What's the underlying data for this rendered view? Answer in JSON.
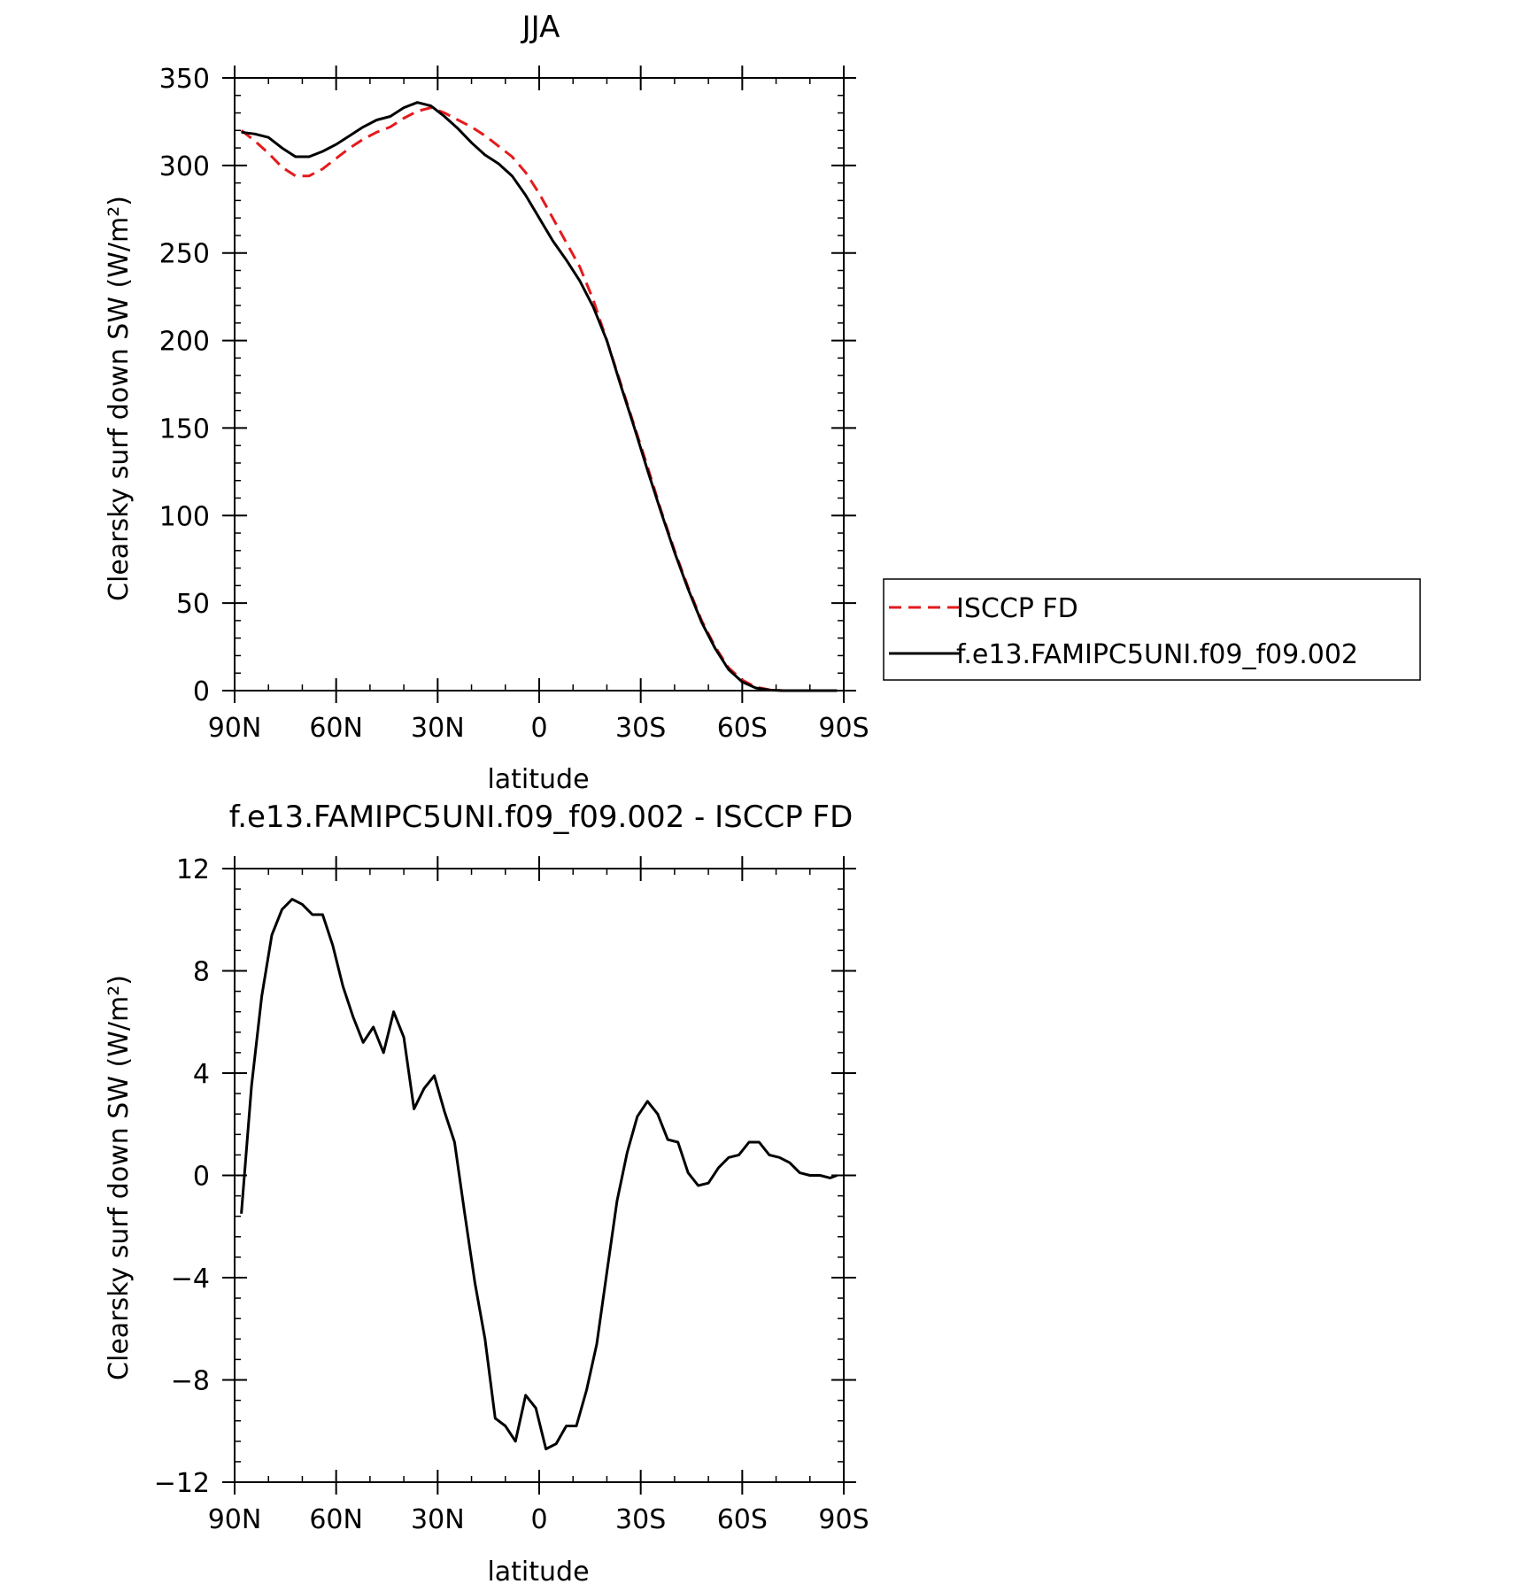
{
  "chart_data": [
    {
      "type": "line",
      "title": "JJA",
      "xlabel": "latitude",
      "ylabel": "Clearsky surf down SW (W/m²)",
      "xlim": [
        90,
        -90
      ],
      "ylim": [
        0,
        350
      ],
      "x_ticks": [
        90,
        60,
        30,
        0,
        -30,
        -60,
        -90
      ],
      "x_tick_labels": [
        "90N",
        "60N",
        "30N",
        "0",
        "30S",
        "60S",
        "90S"
      ],
      "y_ticks": [
        0,
        50,
        100,
        150,
        200,
        250,
        300,
        350
      ],
      "y_tick_labels": [
        "0",
        "50",
        "100",
        "150",
        "200",
        "250",
        "300",
        "350"
      ],
      "legend_position": "right",
      "series": [
        {
          "name": "ISCCP FD",
          "color": "#e41a1c",
          "dash": "dashed",
          "x": [
            88,
            84,
            80,
            76,
            72,
            68,
            64,
            60,
            56,
            52,
            48,
            44,
            40,
            36,
            32,
            28,
            24,
            20,
            16,
            12,
            8,
            4,
            0,
            -4,
            -8,
            -12,
            -16,
            -20,
            -24,
            -28,
            -32,
            -36,
            -40,
            -44,
            -48,
            -52,
            -56,
            -60,
            -64,
            -68,
            -72,
            -76,
            -80,
            -84,
            -88
          ],
          "y": [
            320,
            314,
            307,
            299,
            294,
            294,
            298,
            304,
            310,
            315,
            319,
            322,
            327,
            331,
            333,
            330,
            326,
            322,
            317,
            311,
            305,
            296,
            284,
            270,
            256,
            242,
            223,
            200,
            176,
            152,
            128,
            103,
            80,
            59,
            40,
            25,
            13,
            6,
            2,
            0.5,
            0,
            0,
            0,
            0,
            0
          ]
        },
        {
          "name": "f.e13.FAMIPC5UNI.f09_f09.002",
          "color": "#000000",
          "dash": "solid",
          "x": [
            88,
            84,
            80,
            76,
            72,
            68,
            64,
            60,
            56,
            52,
            48,
            44,
            40,
            36,
            32,
            28,
            24,
            20,
            16,
            12,
            8,
            4,
            0,
            -4,
            -8,
            -12,
            -16,
            -20,
            -24,
            -28,
            -32,
            -36,
            -40,
            -44,
            -48,
            -52,
            -56,
            -60,
            -64,
            -68,
            -72,
            -76,
            -80,
            -84,
            -88
          ],
          "y": [
            319,
            318,
            316,
            310,
            305,
            305,
            308,
            312,
            317,
            322,
            326,
            328,
            333,
            336,
            334,
            328,
            321,
            313,
            306,
            301,
            294,
            283,
            270,
            257,
            246,
            234,
            219,
            200,
            175,
            151,
            126,
            102,
            79,
            58,
            39,
            24,
            12,
            5,
            1.5,
            0.3,
            0,
            0,
            0,
            0,
            0
          ]
        }
      ]
    },
    {
      "type": "line",
      "title": "f.e13.FAMIPC5UNI.f09_f09.002 - ISCCP FD",
      "xlabel": "latitude",
      "ylabel": "Clearsky surf down SW (W/m²)",
      "xlim": [
        90,
        -90
      ],
      "ylim": [
        -12,
        12
      ],
      "x_ticks": [
        90,
        60,
        30,
        0,
        -30,
        -60,
        -90
      ],
      "x_tick_labels": [
        "90N",
        "60N",
        "30N",
        "0",
        "30S",
        "60S",
        "90S"
      ],
      "y_ticks": [
        -12,
        -8,
        -4,
        0,
        4,
        8,
        12
      ],
      "y_tick_labels": [
        "−12",
        "−8",
        "−4",
        "0",
        "4",
        "8",
        "12"
      ],
      "series": [
        {
          "color": "#000000",
          "dash": "solid",
          "x": [
            88,
            85,
            82,
            79,
            76,
            73,
            70,
            67,
            64,
            61,
            58,
            55,
            52,
            49,
            46,
            43,
            40,
            37,
            34,
            31,
            28,
            25,
            22,
            19,
            16,
            13,
            10,
            7,
            4,
            1,
            -2,
            -5,
            -8,
            -11,
            -14,
            -17,
            -20,
            -23,
            -26,
            -29,
            -32,
            -35,
            -38,
            -41,
            -44,
            -47,
            -50,
            -53,
            -56,
            -59,
            -62,
            -65,
            -68,
            -71,
            -74,
            -77,
            -80,
            -83,
            -86,
            -88
          ],
          "y": [
            -1.5,
            3.5,
            7.0,
            9.4,
            10.4,
            10.8,
            10.6,
            10.2,
            10.2,
            9.0,
            7.4,
            6.2,
            5.2,
            5.8,
            4.8,
            6.4,
            5.4,
            2.6,
            3.4,
            3.9,
            2.5,
            1.3,
            -1.5,
            -4.2,
            -6.4,
            -9.5,
            -9.8,
            -10.4,
            -8.6,
            -9.1,
            -10.7,
            -10.5,
            -9.8,
            -9.8,
            -8.4,
            -6.6,
            -3.8,
            -1.0,
            0.9,
            2.3,
            2.9,
            2.4,
            1.4,
            1.3,
            0.1,
            -0.4,
            -0.3,
            0.3,
            0.7,
            0.8,
            1.3,
            1.3,
            0.8,
            0.7,
            0.5,
            0.1,
            0.0,
            0.0,
            -0.1,
            0.0
          ]
        }
      ]
    }
  ]
}
